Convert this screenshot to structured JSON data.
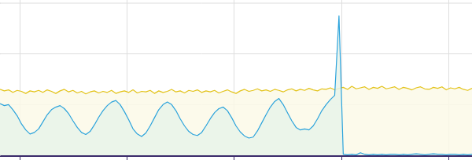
{
  "chart_data": {
    "type": "area",
    "x": [
      0.82,
      0.86,
      0.9,
      0.94,
      0.98,
      1.02,
      1.06,
      1.1,
      1.14,
      1.18,
      1.22,
      1.26,
      1.3,
      1.34,
      1.38,
      1.42,
      1.46,
      1.5,
      1.54,
      1.58,
      1.62,
      1.66,
      1.7,
      1.74,
      1.78,
      1.82,
      1.86,
      1.9,
      1.94,
      1.98,
      2.02,
      2.06,
      2.1,
      2.14,
      2.18,
      2.22,
      2.26,
      2.3,
      2.34,
      2.38,
      2.42,
      2.46,
      2.5,
      2.54,
      2.58,
      2.62,
      2.66,
      2.7,
      2.74,
      2.78,
      2.82,
      2.86,
      2.9,
      2.94,
      2.98,
      3.02,
      3.06,
      3.1,
      3.14,
      3.18,
      3.22,
      3.26,
      3.3,
      3.34,
      3.38,
      3.42,
      3.46,
      3.5,
      3.54,
      3.58,
      3.62,
      3.66,
      3.7,
      3.74,
      3.78,
      3.82,
      3.86,
      3.9,
      3.94,
      3.98,
      4.02,
      4.06,
      4.1,
      4.14,
      4.18,
      4.22,
      4.26,
      4.3,
      4.34,
      4.38,
      4.42,
      4.46,
      4.5,
      4.54,
      4.58,
      4.62,
      4.66,
      4.7,
      4.74,
      4.78,
      4.82,
      4.86,
      4.9,
      4.94,
      4.98,
      5.02,
      5.06,
      5.1,
      5.14,
      5.18,
      5.22
    ],
    "series": [
      {
        "color": "#e3c31a",
        "values": [
          1.3,
          1.27,
          1.29,
          1.24,
          1.28,
          1.26,
          1.22,
          1.27,
          1.25,
          1.28,
          1.24,
          1.29,
          1.26,
          1.22,
          1.27,
          1.3,
          1.25,
          1.28,
          1.23,
          1.26,
          1.21,
          1.25,
          1.27,
          1.23,
          1.26,
          1.24,
          1.28,
          1.22,
          1.25,
          1.27,
          1.24,
          1.29,
          1.23,
          1.26,
          1.25,
          1.28,
          1.22,
          1.27,
          1.24,
          1.26,
          1.3,
          1.25,
          1.27,
          1.23,
          1.28,
          1.26,
          1.29,
          1.24,
          1.27,
          1.25,
          1.28,
          1.23,
          1.26,
          1.29,
          1.25,
          1.22,
          1.27,
          1.3,
          1.26,
          1.28,
          1.31,
          1.27,
          1.29,
          1.26,
          1.3,
          1.28,
          1.25,
          1.29,
          1.31,
          1.27,
          1.3,
          1.28,
          1.32,
          1.29,
          1.27,
          1.31,
          1.3,
          1.33,
          1.29,
          1.32,
          1.34,
          1.3,
          1.36,
          1.31,
          1.33,
          1.35,
          1.3,
          1.34,
          1.32,
          1.36,
          1.31,
          1.33,
          1.35,
          1.3,
          1.34,
          1.32,
          1.29,
          1.33,
          1.35,
          1.31,
          1.3,
          1.34,
          1.32,
          1.35,
          1.29,
          1.33,
          1.31,
          1.34,
          1.3,
          1.28,
          1.32
        ]
      },
      {
        "color": "#2ba3dc",
        "values": [
          1.02,
          0.98,
          1.0,
          0.9,
          0.78,
          0.62,
          0.5,
          0.42,
          0.45,
          0.52,
          0.66,
          0.8,
          0.9,
          0.95,
          0.98,
          0.92,
          0.82,
          0.68,
          0.55,
          0.45,
          0.41,
          0.47,
          0.6,
          0.75,
          0.88,
          0.98,
          1.05,
          1.08,
          1.0,
          0.86,
          0.7,
          0.52,
          0.42,
          0.37,
          0.44,
          0.58,
          0.74,
          0.9,
          1.0,
          1.05,
          1.0,
          0.88,
          0.72,
          0.58,
          0.47,
          0.41,
          0.39,
          0.45,
          0.58,
          0.72,
          0.84,
          0.92,
          0.95,
          0.88,
          0.74,
          0.58,
          0.46,
          0.38,
          0.34,
          0.36,
          0.48,
          0.64,
          0.8,
          0.95,
          1.06,
          1.12,
          1.0,
          0.84,
          0.68,
          0.55,
          0.5,
          0.52,
          0.5,
          0.58,
          0.72,
          0.88,
          1.0,
          1.1,
          1.18,
          2.75,
          0.02,
          0.01,
          0.02,
          0.01,
          0.05,
          0.02,
          0.01,
          0.02,
          0.01,
          0.02,
          0.01,
          0.02,
          0.02,
          0.01,
          0.02,
          0.01,
          0.02,
          0.03,
          0.02,
          0.01,
          0.02,
          0.03,
          0.02,
          0.02,
          0.01,
          0.02,
          0.02,
          0.01,
          0.02,
          0.01,
          0.02
        ]
      }
    ],
    "xlim": [
      0.82,
      5.22
    ],
    "xticks": [
      1,
      2,
      3,
      4,
      5
    ],
    "ylim": [
      0,
      3
    ],
    "yticks": [
      0,
      1,
      2,
      3
    ],
    "grid": true,
    "tick_labels": false
  }
}
